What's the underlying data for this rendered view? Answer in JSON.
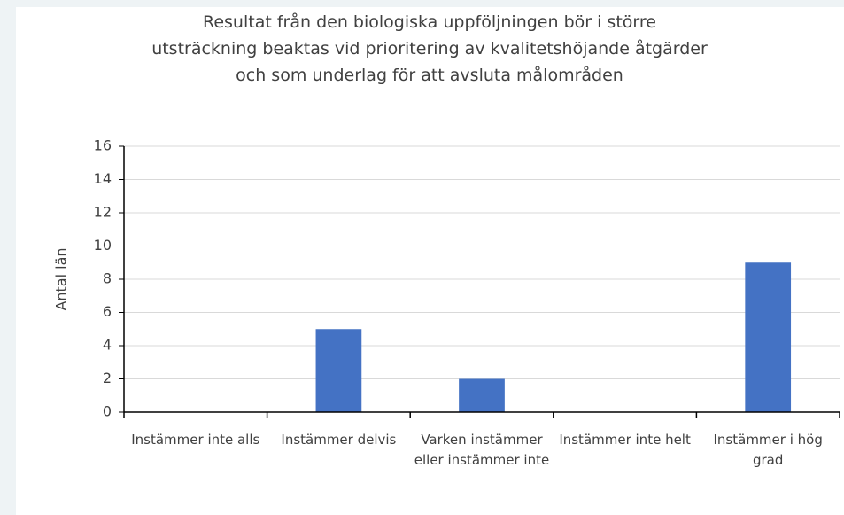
{
  "chart_data": {
    "type": "bar",
    "title": "Resultat från den biologiska uppföljningen bör i större utsträckning beaktas vid prioritering av kvalitetshöjande åtgärder och som underlag för att avsluta målområden",
    "y_label": "Antal län",
    "categories": [
      "Instämmer inte alls",
      "Instämmer delvis",
      "Varken instämmer eller instämmer inte",
      "Instämmer inte helt",
      "Instämmer i hög grad"
    ],
    "values": [
      0,
      5,
      2,
      0,
      9
    ],
    "color": "#4472c4",
    "ylim": [
      0,
      16
    ],
    "yticks": [
      0,
      2,
      4,
      6,
      8,
      10,
      12,
      14,
      16
    ],
    "grid": true
  }
}
